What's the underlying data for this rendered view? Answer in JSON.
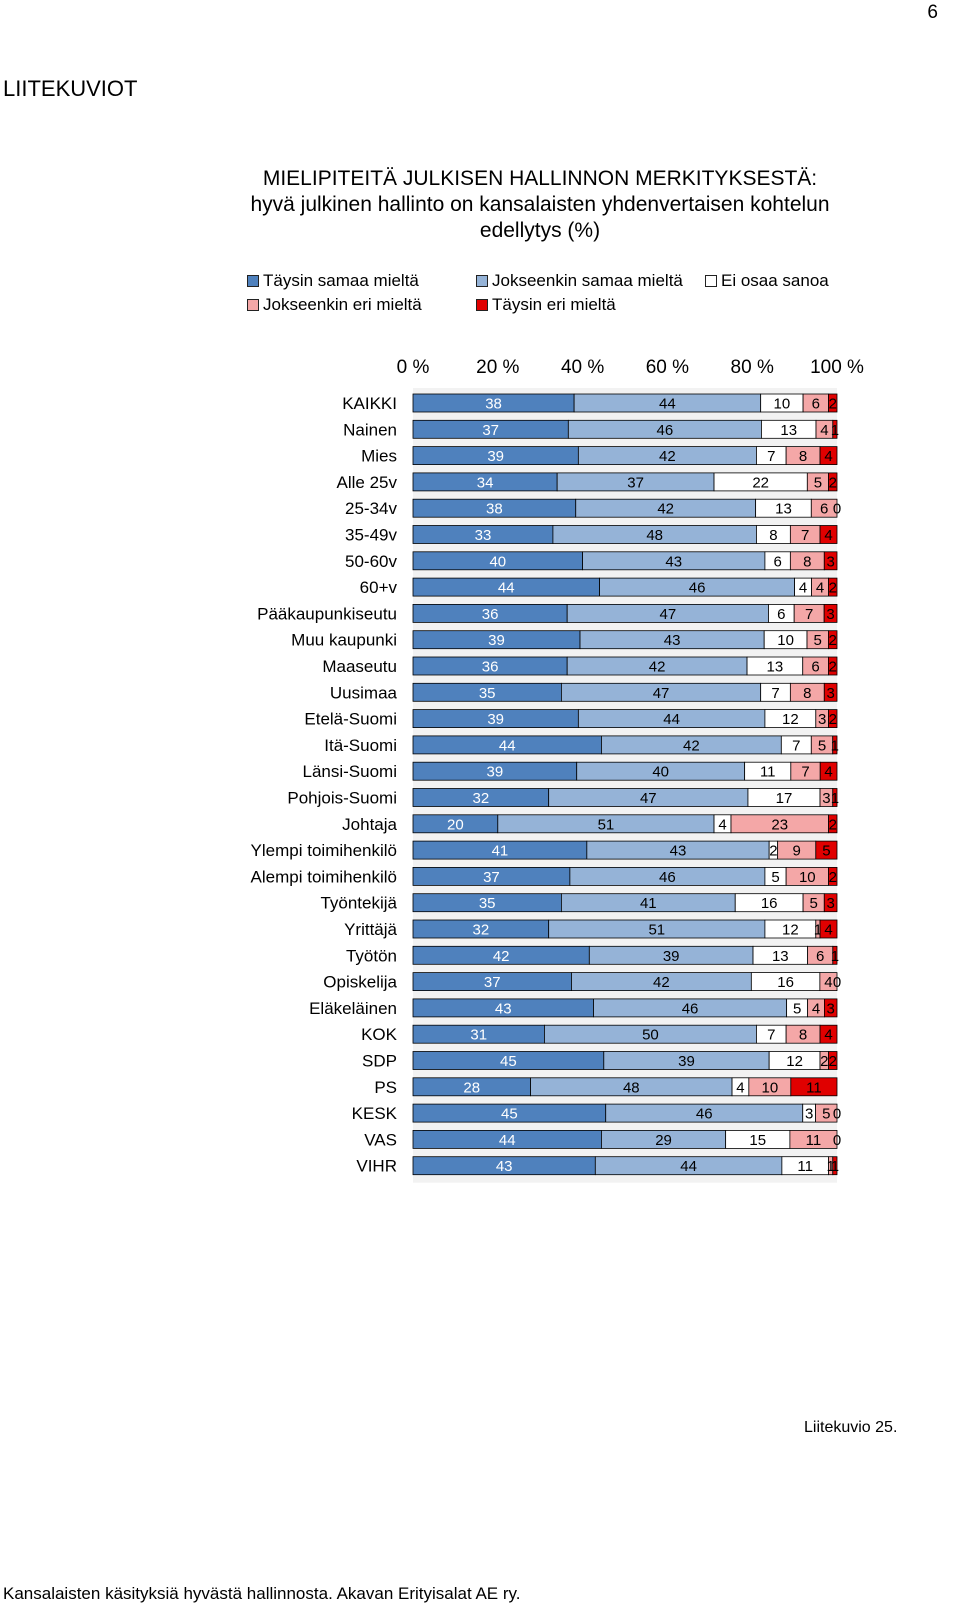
{
  "page_number": "6",
  "section_title": "LIITEKUVIOT",
  "chart_title_lines": [
    "MIELIPITEITÄ JULKISEN HALLINNON MERKITYKSESTÄ:",
    "hyvä julkinen hallinto on kansalaisten yhdenvertaisen kohtelun",
    "edellytys (%)"
  ],
  "legend": [
    {
      "label": "Täysin samaa mieltä",
      "color": "#4f81bd"
    },
    {
      "label": "Jokseenkin samaa mieltä",
      "color": "#95b3d7"
    },
    {
      "label": "Ei osaa sanoa",
      "color": "#ffffff"
    },
    {
      "label": "Jokseenkin eri mieltä",
      "color": "#f4a7a7"
    },
    {
      "label": "Täysin eri mieltä",
      "color": "#e00000"
    }
  ],
  "figure_caption": "Liitekuvio 25.",
  "footer": "Kansalaisten käsityksiä hyvästä hallinnosta. Akavan Erityisalat AE ry.",
  "chart_data": {
    "type": "bar",
    "orientation": "horizontal",
    "stacked": "percent",
    "title": "MIELIPITEITÄ JULKISEN HALLINNON MERKITYKSESTÄ: hyvä julkinen hallinto on kansalaisten yhdenvertaisen kohtelun edellytys (%)",
    "x_ticks": [
      "0 %",
      "20 %",
      "40 %",
      "60 %",
      "80 %",
      "100 %"
    ],
    "xlim": [
      0,
      100
    ],
    "legend_position": "top",
    "grid": false,
    "series_names": [
      "Täysin samaa mieltä",
      "Jokseenkin samaa mieltä",
      "Ei osaa sanoa",
      "Jokseenkin eri mieltä",
      "Täysin eri mieltä"
    ],
    "series_colors": [
      "#4f81bd",
      "#95b3d7",
      "#ffffff",
      "#f4a7a7",
      "#e00000"
    ],
    "groups": [
      {
        "rows": [
          {
            "label": "KAIKKI",
            "values": [
              38,
              44,
              10,
              6,
              2
            ]
          }
        ]
      },
      {
        "rows": [
          {
            "label": "Nainen",
            "values": [
              37,
              46,
              13,
              4,
              1
            ]
          },
          {
            "label": "Mies",
            "values": [
              39,
              42,
              7,
              8,
              4
            ]
          }
        ]
      },
      {
        "rows": [
          {
            "label": "Alle 25v",
            "values": [
              34,
              37,
              22,
              5,
              2
            ]
          },
          {
            "label": "25-34v",
            "values": [
              38,
              42,
              13,
              6,
              0
            ]
          },
          {
            "label": "35-49v",
            "values": [
              33,
              48,
              8,
              7,
              4
            ]
          },
          {
            "label": "50-60v",
            "values": [
              40,
              43,
              6,
              8,
              3
            ]
          },
          {
            "label": "60+v",
            "values": [
              44,
              46,
              4,
              4,
              2
            ]
          }
        ]
      },
      {
        "rows": [
          {
            "label": "Pääkaupunkiseutu",
            "values": [
              36,
              47,
              6,
              7,
              3
            ]
          },
          {
            "label": "Muu kaupunki",
            "values": [
              39,
              43,
              10,
              5,
              2
            ]
          },
          {
            "label": "Maaseutu",
            "values": [
              36,
              42,
              13,
              6,
              2
            ]
          }
        ]
      },
      {
        "rows": [
          {
            "label": "Uusimaa",
            "values": [
              35,
              47,
              7,
              8,
              3
            ]
          },
          {
            "label": "Etelä-Suomi",
            "values": [
              39,
              44,
              12,
              3,
              2
            ]
          },
          {
            "label": "Itä-Suomi",
            "values": [
              44,
              42,
              7,
              5,
              1
            ]
          },
          {
            "label": "Länsi-Suomi",
            "values": [
              39,
              40,
              11,
              7,
              4
            ]
          },
          {
            "label": "Pohjois-Suomi",
            "values": [
              32,
              47,
              17,
              3,
              1
            ]
          }
        ]
      },
      {
        "rows": [
          {
            "label": "Johtaja",
            "values": [
              20,
              51,
              4,
              23,
              2
            ]
          },
          {
            "label": "Ylempi toimihenkilö",
            "values": [
              41,
              43,
              2,
              9,
              5
            ]
          },
          {
            "label": "Alempi toimihenkilö",
            "values": [
              37,
              46,
              5,
              10,
              2
            ]
          },
          {
            "label": "Työntekijä",
            "values": [
              35,
              41,
              16,
              5,
              3
            ]
          },
          {
            "label": "Yrittäjä",
            "values": [
              32,
              51,
              12,
              1,
              4
            ]
          },
          {
            "label": "Työtön",
            "values": [
              42,
              39,
              13,
              6,
              1
            ]
          },
          {
            "label": "Opiskelija",
            "values": [
              37,
              42,
              16,
              4,
              0
            ]
          },
          {
            "label": "Eläkeläinen",
            "values": [
              43,
              46,
              5,
              4,
              3
            ]
          }
        ]
      },
      {
        "rows": [
          {
            "label": "KOK",
            "values": [
              31,
              50,
              7,
              8,
              4
            ]
          },
          {
            "label": "SDP",
            "values": [
              45,
              39,
              12,
              2,
              2
            ]
          },
          {
            "label": "PS",
            "values": [
              28,
              48,
              4,
              10,
              11
            ]
          },
          {
            "label": "KESK",
            "values": [
              45,
              46,
              3,
              5,
              0
            ]
          },
          {
            "label": "VAS",
            "values": [
              44,
              29,
              15,
              11,
              0
            ]
          },
          {
            "label": "VIHR",
            "values": [
              43,
              44,
              11,
              1,
              1
            ]
          }
        ]
      }
    ]
  }
}
